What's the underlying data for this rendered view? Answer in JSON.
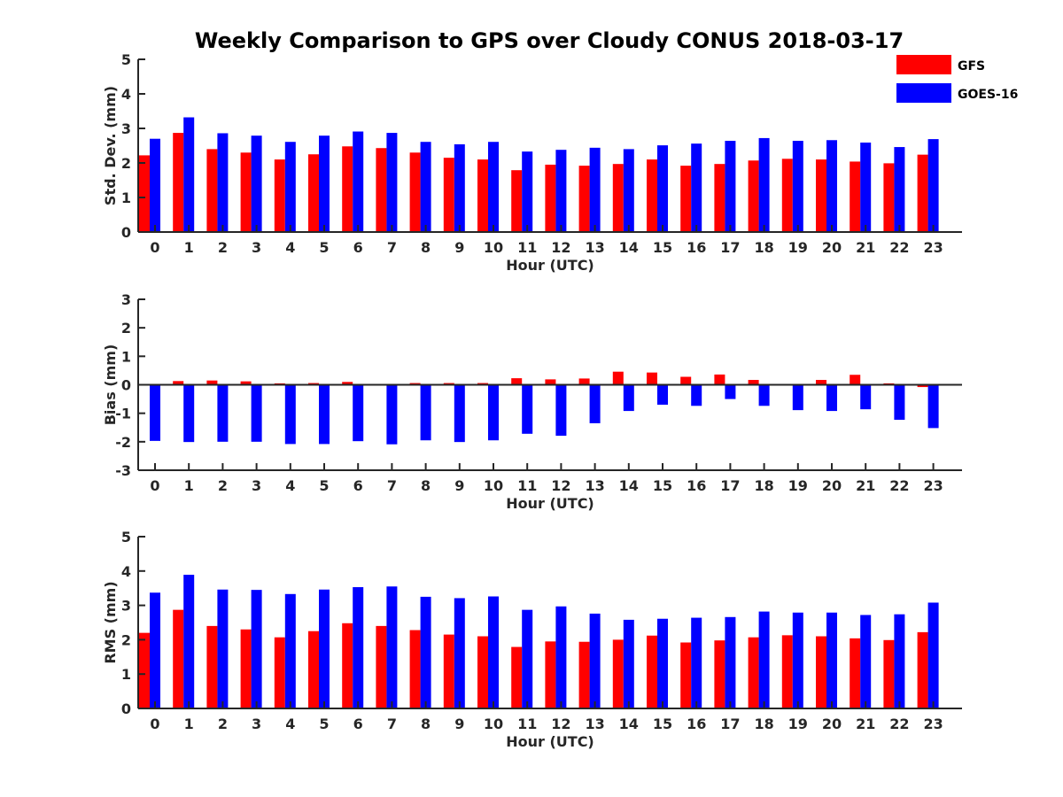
{
  "title": "Weekly Comparison to GPS over Cloudy CONUS 2018-03-17",
  "legend": {
    "placement": "top-right",
    "entries": [
      {
        "name": "GFS",
        "color": "#ff0000"
      },
      {
        "name": "GOES-16",
        "color": "#0000ff"
      }
    ]
  },
  "chart_data": [
    {
      "type": "bar",
      "ylabel": "Std. Dev. (mm)",
      "xlabel": "Hour (UTC)",
      "ylim": [
        0,
        5
      ],
      "yticks": [
        "0",
        "1",
        "2",
        "3",
        "4",
        "5"
      ],
      "categories": [
        "0",
        "1",
        "2",
        "3",
        "4",
        "5",
        "6",
        "7",
        "8",
        "9",
        "10",
        "11",
        "12",
        "13",
        "14",
        "15",
        "16",
        "17",
        "18",
        "19",
        "20",
        "21",
        "22",
        "23"
      ],
      "series": [
        {
          "name": "GFS",
          "color": "#ff0000",
          "values": [
            2.22,
            2.87,
            2.4,
            2.3,
            2.1,
            2.25,
            2.48,
            2.43,
            2.3,
            2.15,
            2.1,
            1.79,
            1.95,
            1.92,
            1.97,
            2.1,
            1.92,
            1.97,
            2.07,
            2.12,
            2.1,
            2.04,
            1.99,
            2.24
          ]
        },
        {
          "name": "GOES-16",
          "color": "#0000ff",
          "values": [
            2.7,
            3.32,
            2.86,
            2.79,
            2.61,
            2.79,
            2.91,
            2.87,
            2.61,
            2.54,
            2.61,
            2.33,
            2.38,
            2.44,
            2.4,
            2.51,
            2.56,
            2.64,
            2.72,
            2.64,
            2.66,
            2.59,
            2.46,
            2.69
          ]
        }
      ]
    },
    {
      "type": "bar",
      "ylabel": "Bias (mm)",
      "xlabel": "Hour (UTC)",
      "ylim": [
        -3,
        3
      ],
      "yticks": [
        "-3",
        "-2",
        "-1",
        "0",
        "1",
        "2",
        "3"
      ],
      "categories": [
        "0",
        "1",
        "2",
        "3",
        "4",
        "5",
        "6",
        "7",
        "8",
        "9",
        "10",
        "11",
        "12",
        "13",
        "14",
        "15",
        "16",
        "17",
        "18",
        "19",
        "20",
        "21",
        "22",
        "23"
      ],
      "series": [
        {
          "name": "GFS",
          "color": "#ff0000",
          "values": [
            0.02,
            0.13,
            0.15,
            0.12,
            0.05,
            0.06,
            0.1,
            0.02,
            0.06,
            0.06,
            0.06,
            0.23,
            0.19,
            0.22,
            0.46,
            0.43,
            0.28,
            0.36,
            0.17,
            0.03,
            0.17,
            0.35,
            0.05,
            -0.08
          ]
        },
        {
          "name": "GOES-16",
          "color": "#0000ff",
          "values": [
            -1.97,
            -2.01,
            -2.0,
            -2.0,
            -2.08,
            -2.08,
            -1.98,
            -2.09,
            -1.95,
            -2.01,
            -1.95,
            -1.72,
            -1.79,
            -1.35,
            -0.92,
            -0.7,
            -0.74,
            -0.5,
            -0.74,
            -0.89,
            -0.92,
            -0.86,
            -1.23,
            -1.52
          ]
        }
      ]
    },
    {
      "type": "bar",
      "ylabel": "RMS (mm)",
      "xlabel": "Hour (UTC)",
      "ylim": [
        0,
        5
      ],
      "yticks": [
        "0",
        "1",
        "2",
        "3",
        "4",
        "5"
      ],
      "categories": [
        "0",
        "1",
        "2",
        "3",
        "4",
        "5",
        "6",
        "7",
        "8",
        "9",
        "10",
        "11",
        "12",
        "13",
        "14",
        "15",
        "16",
        "17",
        "18",
        "19",
        "20",
        "21",
        "22",
        "23"
      ],
      "series": [
        {
          "name": "GFS",
          "color": "#ff0000",
          "values": [
            2.2,
            2.87,
            2.4,
            2.3,
            2.07,
            2.25,
            2.48,
            2.4,
            2.28,
            2.15,
            2.1,
            1.79,
            1.95,
            1.94,
            2.0,
            2.12,
            1.92,
            1.98,
            2.07,
            2.13,
            2.1,
            2.04,
            1.99,
            2.22
          ]
        },
        {
          "name": "GOES-16",
          "color": "#0000ff",
          "values": [
            3.37,
            3.89,
            3.46,
            3.45,
            3.33,
            3.46,
            3.53,
            3.55,
            3.25,
            3.21,
            3.26,
            2.87,
            2.97,
            2.76,
            2.58,
            2.61,
            2.64,
            2.66,
            2.82,
            2.79,
            2.79,
            2.72,
            2.74,
            3.08
          ]
        }
      ]
    }
  ]
}
